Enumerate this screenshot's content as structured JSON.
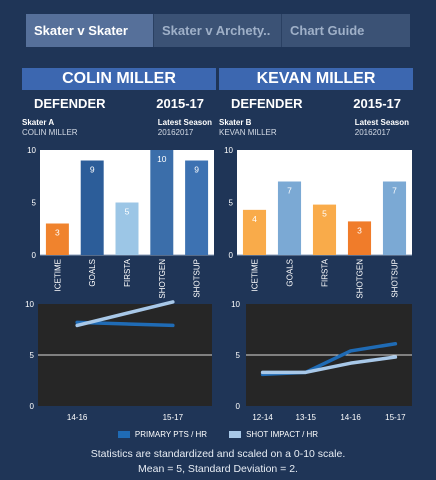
{
  "tabs": [
    {
      "label": "Skater v Skater",
      "active": true
    },
    {
      "label": "Skater v Archety..",
      "active": false
    },
    {
      "label": "Chart Guide",
      "active": false
    }
  ],
  "players": [
    {
      "name": "COLIN MILLER",
      "position": "DEFENDER",
      "season": "2015-17",
      "skater_label": "Skater A",
      "skater_value": "COLIN MILLER",
      "latest_label": "Latest Season",
      "latest_value": "20162017"
    },
    {
      "name": "KEVAN MILLER",
      "position": "DEFENDER",
      "season": "2015-17",
      "skater_label": "Skater B",
      "skater_value": "KEVAN MILLER",
      "latest_label": "Latest Season",
      "latest_value": "20162017"
    }
  ],
  "colors": {
    "primary": "#1f6bb5",
    "shot_impact": "#a8c8e8",
    "orange": "#f0832d",
    "light_orange": "#f9b04c",
    "dark_blue": "#2c5d99",
    "mid_blue": "#3b73b8",
    "light_blue": "#7aabd6",
    "pale_blue": "#9cc6e6"
  },
  "legend": [
    {
      "label": "PRIMARY PTS / HR",
      "color": "#1f6bb5"
    },
    {
      "label": "SHOT IMPACT / HR",
      "color": "#a8c8e8"
    }
  ],
  "footer": {
    "line1": "Statistics are standardized and scaled on a 0-10 scale.",
    "line2": "Mean = 5, Standard Deviation = 2."
  },
  "chart_data": [
    {
      "type": "bar",
      "player": "COLIN MILLER",
      "categories": [
        "ICETIME",
        "GOALS",
        "FIRSTA",
        "SHOTGEN",
        "SHOTSUP"
      ],
      "values": [
        3,
        9,
        5,
        10,
        9
      ],
      "labels": [
        "3",
        "9",
        "5",
        "10",
        "9"
      ],
      "colors": [
        "#f0832d",
        "#2c5d99",
        "#9cc6e6",
        "#3b6eaa",
        "#3d72b2"
      ],
      "ylim": [
        0,
        10
      ],
      "yticks": [
        0,
        5,
        10
      ]
    },
    {
      "type": "bar",
      "player": "KEVAN MILLER",
      "categories": [
        "ICETIME",
        "GOALS",
        "FIRSTA",
        "SHOTGEN",
        "SHOTSUP"
      ],
      "values": [
        4.3,
        7,
        4.8,
        3.2,
        7
      ],
      "labels": [
        "4",
        "7",
        "5",
        "3",
        "7"
      ],
      "colors": [
        "#f9ab4a",
        "#7ba9d4",
        "#f9ab4a",
        "#f07c2a",
        "#7ba9d4"
      ],
      "ylim": [
        0,
        10
      ],
      "yticks": [
        0,
        5,
        10
      ]
    },
    {
      "type": "line",
      "player": "COLIN MILLER",
      "x": [
        "14-16",
        "15-17"
      ],
      "ylim": [
        0,
        10
      ],
      "yticks": [
        0,
        5,
        10
      ],
      "series": [
        {
          "name": "PRIMARY PTS / HR",
          "values": [
            8.2,
            7.9
          ]
        },
        {
          "name": "SHOT IMPACT / HR",
          "values": [
            7.9,
            10.2
          ]
        }
      ]
    },
    {
      "type": "line",
      "player": "KEVAN MILLER",
      "x": [
        "12-14",
        "13-15",
        "14-16",
        "15-17"
      ],
      "ylim": [
        0,
        10
      ],
      "yticks": [
        0,
        5,
        10
      ],
      "series": [
        {
          "name": "PRIMARY PTS / HR",
          "values": [
            3.1,
            3.3,
            5.4,
            6.1
          ]
        },
        {
          "name": "SHOT IMPACT / HR",
          "values": [
            3.3,
            3.3,
            4.2,
            4.8
          ]
        }
      ]
    }
  ]
}
